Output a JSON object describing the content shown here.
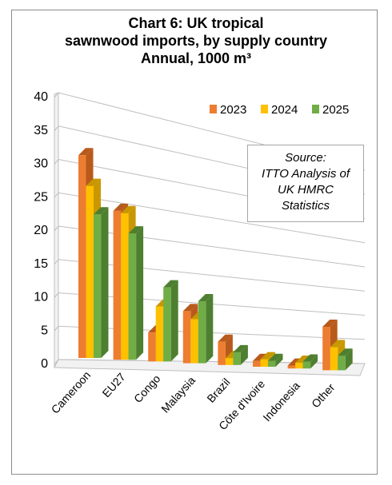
{
  "title_lines": [
    "Chart 6: UK tropical",
    "sawnwood imports, by supply country",
    "Annual,  1000 m³"
  ],
  "source_lines": [
    "Source:",
    "ITTO Analysis of",
    "UK HMRC",
    "Statistics"
  ],
  "chart_data": {
    "type": "bar",
    "categories": [
      "Cameroon",
      "EU27",
      "Congo",
      "Malaysia",
      "Brazil",
      "Côte d'Ivoire",
      "Indonesia",
      "Other"
    ],
    "series": [
      {
        "name": "2023",
        "values": [
          35.0,
          25.7,
          5.0,
          9.0,
          4.0,
          1.0,
          0.5,
          7.5
        ],
        "color": "#ed7d31",
        "side": "#b85a1c"
      },
      {
        "name": "2024",
        "values": [
          29.7,
          25.3,
          9.5,
          7.6,
          1.2,
          1.3,
          1.0,
          4.0
        ],
        "color": "#ffc000",
        "side": "#c99700"
      },
      {
        "name": "2025",
        "values": [
          24.8,
          21.8,
          12.8,
          10.7,
          2.2,
          1.0,
          1.2,
          2.5
        ],
        "color": "#70ad47",
        "side": "#4e7f30"
      }
    ],
    "ylim": [
      0,
      40
    ],
    "yticks": [
      "0",
      "5",
      "10",
      "15",
      "20",
      "25",
      "30",
      "35",
      "40"
    ],
    "grid": true,
    "legend": "top-right",
    "xlabel": "",
    "ylabel": ""
  }
}
